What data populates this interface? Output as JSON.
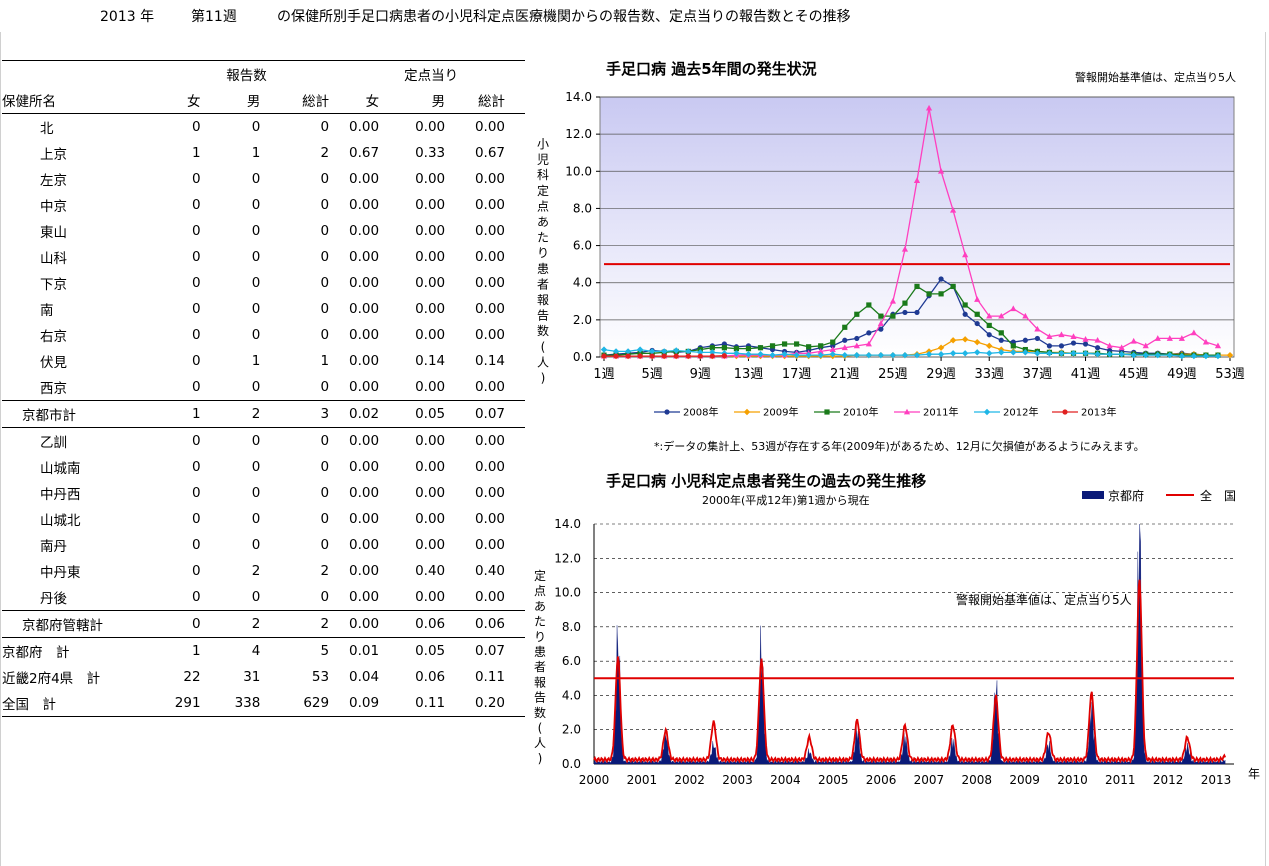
{
  "page": {
    "year": "2013 年",
    "week": "第11週",
    "title": "の保健所別手足口病患者の小児科定点医療機関からの報告数、定点当りの報告数とその推移"
  },
  "table": {
    "group_reports": "報告数",
    "group_per_site": "定点当り",
    "col_name": "保健所名",
    "col_f": "女",
    "col_m": "男",
    "col_total": "総計",
    "rows": [
      {
        "name": "北",
        "f": "0",
        "m": "0",
        "t": "0",
        "pf": "0.00",
        "pm": "0.00",
        "pt": "0.00"
      },
      {
        "name": "上京",
        "f": "1",
        "m": "1",
        "t": "2",
        "pf": "0.67",
        "pm": "0.33",
        "pt": "0.67"
      },
      {
        "name": "左京",
        "f": "0",
        "m": "0",
        "t": "0",
        "pf": "0.00",
        "pm": "0.00",
        "pt": "0.00"
      },
      {
        "name": "中京",
        "f": "0",
        "m": "0",
        "t": "0",
        "pf": "0.00",
        "pm": "0.00",
        "pt": "0.00"
      },
      {
        "name": "東山",
        "f": "0",
        "m": "0",
        "t": "0",
        "pf": "0.00",
        "pm": "0.00",
        "pt": "0.00"
      },
      {
        "name": "山科",
        "f": "0",
        "m": "0",
        "t": "0",
        "pf": "0.00",
        "pm": "0.00",
        "pt": "0.00"
      },
      {
        "name": "下京",
        "f": "0",
        "m": "0",
        "t": "0",
        "pf": "0.00",
        "pm": "0.00",
        "pt": "0.00"
      },
      {
        "name": "南",
        "f": "0",
        "m": "0",
        "t": "0",
        "pf": "0.00",
        "pm": "0.00",
        "pt": "0.00"
      },
      {
        "name": "右京",
        "f": "0",
        "m": "0",
        "t": "0",
        "pf": "0.00",
        "pm": "0.00",
        "pt": "0.00"
      },
      {
        "name": "伏見",
        "f": "0",
        "m": "1",
        "t": "1",
        "pf": "0.00",
        "pm": "0.14",
        "pt": "0.14"
      },
      {
        "name": "西京",
        "f": "0",
        "m": "0",
        "t": "0",
        "pf": "0.00",
        "pm": "0.00",
        "pt": "0.00"
      },
      {
        "name": "京都市計",
        "f": "1",
        "m": "2",
        "t": "3",
        "pf": "0.02",
        "pm": "0.05",
        "pt": "0.07"
      },
      {
        "name": "乙訓",
        "f": "0",
        "m": "0",
        "t": "0",
        "pf": "0.00",
        "pm": "0.00",
        "pt": "0.00"
      },
      {
        "name": "山城南",
        "f": "0",
        "m": "0",
        "t": "0",
        "pf": "0.00",
        "pm": "0.00",
        "pt": "0.00"
      },
      {
        "name": "中丹西",
        "f": "0",
        "m": "0",
        "t": "0",
        "pf": "0.00",
        "pm": "0.00",
        "pt": "0.00"
      },
      {
        "name": "山城北",
        "f": "0",
        "m": "0",
        "t": "0",
        "pf": "0.00",
        "pm": "0.00",
        "pt": "0.00"
      },
      {
        "name": "南丹",
        "f": "0",
        "m": "0",
        "t": "0",
        "pf": "0.00",
        "pm": "0.00",
        "pt": "0.00"
      },
      {
        "name": "中丹東",
        "f": "0",
        "m": "2",
        "t": "2",
        "pf": "0.00",
        "pm": "0.40",
        "pt": "0.40"
      },
      {
        "name": "丹後",
        "f": "0",
        "m": "0",
        "t": "0",
        "pf": "0.00",
        "pm": "0.00",
        "pt": "0.00"
      },
      {
        "name": "京都府管轄計",
        "f": "0",
        "m": "2",
        "t": "2",
        "pf": "0.00",
        "pm": "0.06",
        "pt": "0.06"
      },
      {
        "name": "京都府　計",
        "f": "1",
        "m": "4",
        "t": "5",
        "pf": "0.01",
        "pm": "0.05",
        "pt": "0.07"
      },
      {
        "name": "近畿2府4県　計",
        "f": "22",
        "m": "31",
        "t": "53",
        "pf": "0.04",
        "pm": "0.06",
        "pt": "0.11"
      },
      {
        "name": "全国　計",
        "f": "291",
        "m": "338",
        "t": "629",
        "pf": "0.09",
        "pm": "0.11",
        "pt": "0.20"
      }
    ]
  },
  "chart1_text": {
    "threshold_note": "警報開始基準値は、定点当り5人",
    "footnote": "*:データの集計上、53週が存在する年(2009年)があるため、12月に欠損値があるようにみえます。"
  },
  "chart2_text": {
    "subtitle": "2000年(平成12年)第1週から現在",
    "threshold_note": "警報開始基準値は、定点当り5人",
    "year_suffix": "年"
  },
  "chart_data": [
    {
      "type": "line",
      "title": "手足口病 過去5年間の発生状況",
      "ylabel": "小児科定点あたり患者報告数(人)",
      "ylim": [
        0,
        14
      ],
      "yticks": [
        "0.0",
        "2.0",
        "4.0",
        "6.0",
        "8.0",
        "10.0",
        "12.0",
        "14.0"
      ],
      "xlim": [
        1,
        53
      ],
      "xticks": [
        1,
        5,
        9,
        13,
        17,
        21,
        25,
        29,
        33,
        37,
        41,
        45,
        49,
        53
      ],
      "xtick_suffix": "週",
      "threshold": 5,
      "threshold_color": "#e00000",
      "legend_position": "bottom",
      "series": [
        {
          "name": "2008年",
          "color": "#1f3a93",
          "marker": "circle",
          "values": [
            0.1,
            0.15,
            0.2,
            0.25,
            0.35,
            0.3,
            0.25,
            0.3,
            0.5,
            0.6,
            0.7,
            0.55,
            0.6,
            0.5,
            0.4,
            0.3,
            0.25,
            0.35,
            0.5,
            0.6,
            0.9,
            1.0,
            1.3,
            1.5,
            2.3,
            2.4,
            2.4,
            3.3,
            4.2,
            3.8,
            2.3,
            1.8,
            1.2,
            0.9,
            0.8,
            0.9,
            1.0,
            0.6,
            0.6,
            0.75,
            0.7,
            0.5,
            0.35,
            0.3,
            0.25,
            0.2,
            0.2,
            0.15,
            0.2,
            0.15,
            0.1,
            0.1,
            null
          ]
        },
        {
          "name": "2009年",
          "color": "#f5a000",
          "marker": "diamond",
          "values": [
            0.05,
            0.05,
            0.05,
            0.05,
            0.05,
            0.05,
            0.05,
            0.05,
            0.05,
            0.05,
            0.05,
            0.05,
            0.05,
            0.05,
            0.05,
            0.05,
            0.05,
            0.05,
            0.05,
            0.05,
            0.05,
            0.1,
            0.1,
            0.1,
            0.1,
            0.1,
            0.15,
            0.3,
            0.5,
            0.9,
            0.95,
            0.8,
            0.6,
            0.4,
            0.3,
            0.3,
            0.3,
            0.25,
            0.25,
            0.2,
            0.2,
            0.15,
            0.15,
            0.15,
            0.15,
            0.15,
            0.15,
            0.15,
            0.15,
            0.15,
            0.1,
            0.1,
            0.1
          ]
        },
        {
          "name": "2010年",
          "color": "#1a7a1a",
          "marker": "square",
          "values": [
            0.1,
            0.1,
            0.15,
            0.2,
            0.2,
            0.25,
            0.3,
            0.3,
            0.4,
            0.5,
            0.5,
            0.45,
            0.45,
            0.5,
            0.6,
            0.7,
            0.7,
            0.55,
            0.6,
            0.8,
            1.6,
            2.3,
            2.8,
            2.2,
            2.2,
            2.9,
            3.8,
            3.4,
            3.4,
            3.8,
            2.8,
            2.3,
            1.7,
            1.3,
            0.6,
            0.4,
            0.3,
            0.25,
            0.2,
            0.2,
            0.2,
            0.2,
            0.15,
            0.15,
            0.15,
            0.15,
            0.15,
            0.15,
            0.1,
            0.1,
            0.1,
            0.1,
            null
          ]
        },
        {
          "name": "2011年",
          "color": "#ff3fbf",
          "marker": "triangle",
          "values": [
            0.05,
            0.05,
            0.05,
            0.05,
            0.05,
            0.05,
            0.05,
            0.05,
            0.05,
            0.05,
            0.05,
            0.1,
            0.1,
            0.1,
            0.1,
            0.1,
            0.2,
            0.2,
            0.3,
            0.4,
            0.5,
            0.6,
            0.7,
            1.8,
            3.0,
            5.8,
            9.5,
            13.4,
            10.0,
            7.9,
            5.5,
            3.1,
            2.2,
            2.2,
            2.6,
            2.2,
            1.5,
            1.1,
            1.2,
            1.1,
            0.95,
            0.9,
            0.6,
            0.5,
            0.85,
            0.6,
            1.0,
            1.0,
            1.0,
            1.3,
            0.8,
            0.6,
            null
          ]
        },
        {
          "name": "2012年",
          "color": "#1fb6e6",
          "marker": "diamond",
          "values": [
            0.4,
            0.3,
            0.3,
            0.4,
            0.3,
            0.3,
            0.35,
            0.3,
            0.25,
            0.25,
            0.2,
            0.2,
            0.15,
            0.15,
            0.1,
            0.15,
            0.1,
            0.1,
            0.1,
            0.15,
            0.1,
            0.1,
            0.1,
            0.1,
            0.1,
            0.1,
            0.1,
            0.15,
            0.15,
            0.2,
            0.2,
            0.25,
            0.2,
            0.25,
            0.25,
            0.25,
            0.2,
            0.2,
            0.2,
            0.2,
            0.2,
            0.15,
            0.15,
            0.15,
            0.1,
            0.1,
            0.1,
            0.1,
            0.05,
            0.05,
            0.05,
            0.05,
            null
          ]
        },
        {
          "name": "2013年",
          "color": "#e02020",
          "marker": "circle",
          "values": [
            0.05,
            0.05,
            0.05,
            0.05,
            0.05,
            0.05,
            0.05,
            0.05,
            0.05,
            0.05,
            0.07,
            null,
            null,
            null,
            null,
            null,
            null,
            null,
            null,
            null,
            null,
            null,
            null,
            null,
            null,
            null,
            null,
            null,
            null,
            null,
            null,
            null,
            null,
            null,
            null,
            null,
            null,
            null,
            null,
            null,
            null,
            null,
            null,
            null,
            null,
            null,
            null,
            null,
            null,
            null,
            null,
            null,
            null
          ]
        }
      ]
    },
    {
      "type": "area",
      "title": "手足口病 小児科定点患者発生の過去の発生推移",
      "ylabel": "定点あたり患者報告数(人)",
      "ylim": [
        0,
        14
      ],
      "yticks": [
        "0.0",
        "2.0",
        "4.0",
        "6.0",
        "8.0",
        "10.0",
        "12.0",
        "14.0"
      ],
      "xlim": [
        2000,
        2013
      ],
      "xticks": [
        "2000",
        "2001",
        "2002",
        "2003",
        "2004",
        "2005",
        "2006",
        "2007",
        "2008",
        "2009",
        "2010",
        "2011",
        "2012",
        "2013"
      ],
      "threshold": 5,
      "legend_position": "top-right",
      "series": [
        {
          "name": "京都府",
          "color": "#0a1a78",
          "kind": "bar",
          "peaks": [
            [
              2000.5,
              6.9
            ],
            [
              2001.5,
              1.6
            ],
            [
              2002.5,
              1.0
            ],
            [
              2003.5,
              6.5
            ],
            [
              2004.5,
              0.6
            ],
            [
              2005.5,
              1.8
            ],
            [
              2006.5,
              1.4
            ],
            [
              2007.5,
              1.2
            ],
            [
              2008.4,
              4.2
            ],
            [
              2009.5,
              1.0
            ],
            [
              2010.4,
              3.2
            ],
            [
              2011.4,
              13.2
            ],
            [
              2012.4,
              0.9
            ],
            [
              2013.2,
              0.1
            ]
          ]
        },
        {
          "name": "全　国",
          "color": "#e00000",
          "kind": "line",
          "peaks": [
            [
              2000.5,
              6.0
            ],
            [
              2001.5,
              1.7
            ],
            [
              2002.5,
              2.2
            ],
            [
              2003.5,
              5.8
            ],
            [
              2004.5,
              1.3
            ],
            [
              2005.5,
              2.3
            ],
            [
              2006.5,
              2.0
            ],
            [
              2007.5,
              2.0
            ],
            [
              2008.4,
              3.7
            ],
            [
              2009.5,
              1.6
            ],
            [
              2010.4,
              3.9
            ],
            [
              2011.4,
              10.5
            ],
            [
              2012.4,
              1.3
            ],
            [
              2013.2,
              0.2
            ]
          ]
        }
      ]
    }
  ]
}
